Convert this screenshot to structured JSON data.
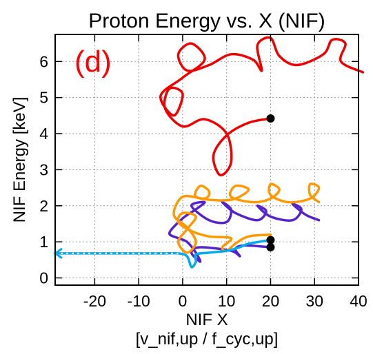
{
  "chart_data": {
    "type": "line",
    "title": "Proton Energy vs. X (NIF)",
    "xlabel": "NIF X",
    "xlabel_sub": "[v_nif,up / f_cyc,up]",
    "ylabel": "NIF Energy [keV]",
    "panel_label": "(d)",
    "panel_label_color": "#ff0000",
    "xlim": [
      -29,
      40
    ],
    "ylim": [
      -0.2,
      6.75
    ],
    "xticks": [
      -20,
      -10,
      0,
      10,
      20,
      30,
      40
    ],
    "yticks": [
      0,
      1,
      2,
      3,
      4,
      5,
      6
    ],
    "xtick_labels": [
      "-20",
      "-10",
      "0",
      "10",
      "20",
      "30",
      "40"
    ],
    "ytick_labels": [
      "0",
      "1",
      "2",
      "3",
      "4",
      "5",
      "6"
    ],
    "grid": true,
    "legend": "none",
    "series": [
      {
        "color": "#ee0000",
        "description_points": "gyrating trajectory",
        "points": [
          [
            20,
            4.42
          ],
          [
            15,
            4.3
          ],
          [
            10,
            3.95
          ],
          [
            7,
            3.4
          ],
          [
            8.5,
            2.85
          ],
          [
            11,
            3.2
          ],
          [
            10,
            4.0
          ],
          [
            5,
            4.4
          ],
          [
            0,
            4.2
          ],
          [
            -4,
            4.7
          ],
          [
            -3,
            5.25
          ],
          [
            0,
            5.1
          ],
          [
            -2,
            4.5
          ],
          [
            -5,
            5.05
          ],
          [
            0,
            5.55
          ],
          [
            5,
            6.05
          ],
          [
            2,
            6.5
          ],
          [
            -1,
            6.2
          ],
          [
            1,
            5.75
          ],
          [
            6,
            5.9
          ],
          [
            11,
            6.2
          ],
          [
            16,
            6.05
          ],
          [
            18,
            5.75
          ],
          [
            17,
            6.45
          ],
          [
            20,
            6.65
          ],
          [
            22,
            6.15
          ],
          [
            26,
            5.9
          ],
          [
            32,
            6.2
          ],
          [
            34,
            6.6
          ],
          [
            37,
            6.5
          ],
          [
            36,
            6.0
          ],
          [
            41,
            5.7
          ]
        ],
        "end_marker": [
          20,
          4.42
        ]
      },
      {
        "color": "#5522cc",
        "description_points": "gyrating trajectory",
        "points": [
          [
            20,
            0.85
          ],
          [
            14,
            0.9
          ],
          [
            12,
            0.8
          ],
          [
            13,
            0.6
          ],
          [
            11,
            0.75
          ],
          [
            4,
            0.85
          ],
          [
            2,
            0.7
          ],
          [
            4,
            0.45
          ],
          [
            3,
            0.7
          ],
          [
            1,
            1.0
          ],
          [
            -1,
            1.1
          ],
          [
            -3,
            1.25
          ],
          [
            0,
            1.65
          ],
          [
            3,
            1.9
          ],
          [
            5,
            2.1
          ],
          [
            2,
            2.0
          ],
          [
            6,
            1.6
          ],
          [
            10,
            1.55
          ],
          [
            11,
            1.9
          ],
          [
            9,
            2.1
          ],
          [
            12,
            1.8
          ],
          [
            17,
            1.6
          ],
          [
            19,
            1.85
          ],
          [
            17,
            2.0
          ],
          [
            20,
            1.7
          ],
          [
            25,
            1.6
          ],
          [
            27,
            1.9
          ],
          [
            25,
            2.05
          ],
          [
            28,
            1.75
          ],
          [
            31,
            1.6
          ]
        ],
        "end_marker": [
          20,
          0.85
        ]
      },
      {
        "color": "#ff9900",
        "description_points": "gyrating trajectory",
        "points": [
          [
            20,
            1.2
          ],
          [
            15,
            1.15
          ],
          [
            12,
            0.95
          ],
          [
            10,
            0.75
          ],
          [
            9,
            0.85
          ],
          [
            11,
            1.1
          ],
          [
            6,
            1.15
          ],
          [
            2,
            1.3
          ],
          [
            -1,
            1.55
          ],
          [
            0,
            1.8
          ],
          [
            3,
            1.7
          ],
          [
            1,
            1.35
          ],
          [
            -1,
            1.0
          ],
          [
            1,
            0.7
          ],
          [
            3,
            1.0
          ],
          [
            1,
            1.4
          ],
          [
            -2,
            1.75
          ],
          [
            0,
            2.25
          ],
          [
            5,
            2.2
          ],
          [
            6,
            2.4
          ],
          [
            4,
            2.55
          ],
          [
            3,
            2.25
          ],
          [
            8,
            2.15
          ],
          [
            12,
            2.2
          ],
          [
            15,
            2.45
          ],
          [
            12,
            2.55
          ],
          [
            11,
            2.25
          ],
          [
            16,
            2.1
          ],
          [
            20,
            2.2
          ],
          [
            22,
            2.45
          ],
          [
            20,
            2.6
          ],
          [
            20,
            2.3
          ],
          [
            24,
            2.1
          ],
          [
            29,
            2.2
          ],
          [
            31,
            2.5
          ],
          [
            29,
            2.6
          ],
          [
            29,
            2.3
          ],
          [
            31,
            2.1
          ]
        ],
        "end_marker": [
          20,
          1.05
        ]
      },
      {
        "color": "#00aaee",
        "description_points": "trajectory with dashed flat segment",
        "points": [
          [
            -29,
            0.68
          ],
          [
            -26,
            0.68
          ],
          [
            -20,
            0.68
          ],
          [
            -15,
            0.68
          ],
          [
            -10,
            0.68
          ],
          [
            -5,
            0.68
          ],
          [
            -1,
            0.68
          ],
          [
            1,
            0.6
          ],
          [
            2,
            0.3
          ],
          [
            3,
            0.45
          ],
          [
            3,
            0.65
          ],
          [
            6,
            0.7
          ],
          [
            10,
            0.75
          ],
          [
            13,
            0.85
          ],
          [
            15,
            0.95
          ],
          [
            20,
            1.05
          ]
        ],
        "end_marker": [
          20,
          1.05
        ]
      }
    ]
  }
}
